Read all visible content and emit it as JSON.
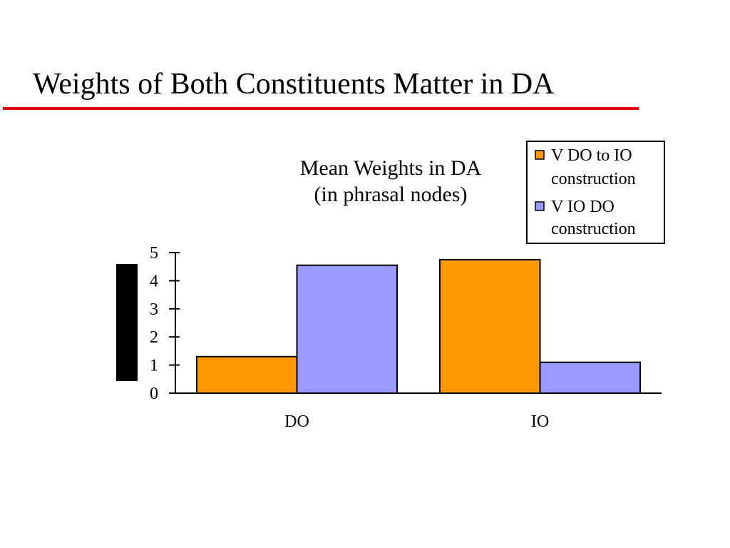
{
  "slide": {
    "title": "Weights of Both Constituents Matter in DA"
  },
  "colors": {
    "accent_rule": "#e00000",
    "series_1": "#ff9900",
    "series_2": "#9999ff"
  },
  "chart_data": {
    "type": "bar",
    "title_lines": [
      "Mean Weights in DA",
      "(in phrasal nodes)"
    ],
    "categories": [
      "DO",
      "IO"
    ],
    "series": [
      {
        "name": "V DO to IO construction",
        "name_lines": [
          "V DO to IO",
          "construction"
        ],
        "values": [
          1.3,
          4.75
        ],
        "color": "#ff9900"
      },
      {
        "name": "V IO DO construction",
        "name_lines": [
          "V IO DO",
          "construction"
        ],
        "values": [
          4.55,
          1.1
        ],
        "color": "#9999ff"
      }
    ],
    "ylim": [
      0,
      5
    ],
    "yticks": [
      0,
      1,
      2,
      3,
      4,
      5
    ],
    "xlabel": "",
    "grid": false,
    "legend_position": "top-right"
  }
}
